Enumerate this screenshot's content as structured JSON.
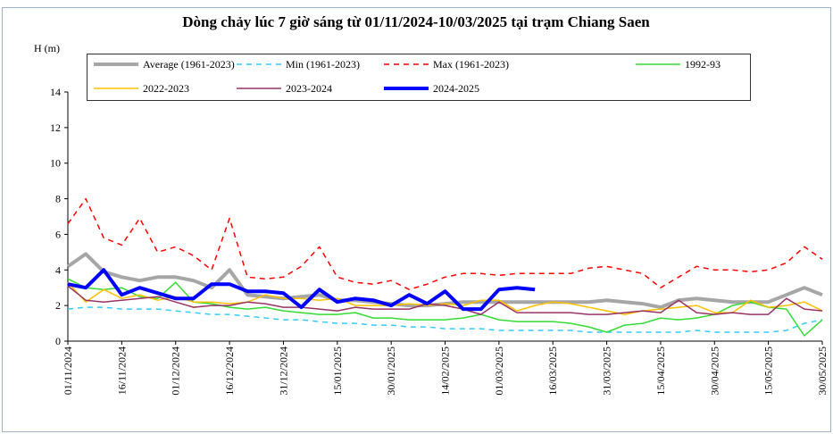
{
  "chart_data": {
    "type": "line",
    "title": "Dòng chảy lúc 7 giờ sáng từ 01/11/2024-10/03/2025 tại trạm Chiang Saen",
    "y_label": "H (m)",
    "x": [
      "01/11/2024",
      "06/11/2024",
      "11/11/2024",
      "16/11/2024",
      "21/11/2024",
      "26/11/2024",
      "01/12/2024",
      "06/12/2024",
      "11/12/2024",
      "16/12/2024",
      "21/12/2024",
      "26/12/2024",
      "31/12/2024",
      "05/01/2025",
      "10/01/2025",
      "15/01/2025",
      "20/01/2025",
      "25/01/2025",
      "30/01/2025",
      "04/02/2025",
      "09/02/2025",
      "14/02/2025",
      "19/02/2025",
      "24/02/2025",
      "01/03/2025",
      "06/03/2025",
      "11/03/2025",
      "16/03/2025",
      "21/03/2025",
      "26/03/2025",
      "31/03/2025",
      "05/04/2025",
      "10/04/2025",
      "15/04/2025",
      "20/04/2025",
      "25/04/2025",
      "30/04/2025",
      "05/05/2025",
      "10/05/2025",
      "15/05/2025",
      "20/05/2025",
      "25/05/2025",
      "30/05/2025"
    ],
    "xlim": [
      "01/11/2024",
      "30/05/2025"
    ],
    "xticks": [
      "01/11/2024",
      "16/11/2024",
      "01/12/2024",
      "16/12/2024",
      "31/12/2024",
      "15/01/2025",
      "30/01/2025",
      "14/02/2025",
      "01/03/2025",
      "16/03/2025",
      "31/03/2025",
      "15/04/2025",
      "30/04/2025",
      "15/05/2025",
      "30/05/2025"
    ],
    "ylim": [
      0,
      14
    ],
    "yticks": [
      0,
      2,
      4,
      6,
      8,
      10,
      12,
      14
    ],
    "series": [
      {
        "name": "Average (1961-2023)",
        "color": "#a6a6a6",
        "style": "bold",
        "values": [
          4.2,
          4.9,
          3.9,
          3.6,
          3.4,
          3.6,
          3.6,
          3.4,
          3.0,
          4.0,
          2.6,
          2.5,
          2.4,
          2.5,
          2.6,
          2.3,
          2.3,
          2.2,
          2.1,
          2.0,
          2.0,
          2.1,
          2.2,
          2.2,
          2.2,
          2.2,
          2.2,
          2.2,
          2.2,
          2.2,
          2.3,
          2.2,
          2.1,
          1.9,
          2.3,
          2.4,
          2.3,
          2.2,
          2.2,
          2.2,
          2.6,
          3.0,
          2.6
        ]
      },
      {
        "name": "Min (1961-2023)",
        "color": "#33ccff",
        "style": "dashed",
        "values": [
          1.8,
          1.9,
          1.9,
          1.8,
          1.8,
          1.8,
          1.7,
          1.6,
          1.5,
          1.5,
          1.4,
          1.3,
          1.2,
          1.2,
          1.1,
          1.0,
          1.0,
          0.9,
          0.9,
          0.8,
          0.8,
          0.7,
          0.7,
          0.7,
          0.6,
          0.6,
          0.6,
          0.6,
          0.6,
          0.5,
          0.5,
          0.5,
          0.5,
          0.5,
          0.5,
          0.6,
          0.5,
          0.5,
          0.5,
          0.5,
          0.6,
          1.0,
          1.2
        ]
      },
      {
        "name": "Max (1961-2023)",
        "color": "#ff0000",
        "style": "dashed",
        "values": [
          6.6,
          8.0,
          5.8,
          5.4,
          6.9,
          5.0,
          5.3,
          4.8,
          4.0,
          6.9,
          3.6,
          3.5,
          3.6,
          4.2,
          5.3,
          3.6,
          3.3,
          3.2,
          3.4,
          2.9,
          3.2,
          3.6,
          3.8,
          3.8,
          3.7,
          3.8,
          3.8,
          3.8,
          3.8,
          4.1,
          4.2,
          4.0,
          3.8,
          3.0,
          3.6,
          4.2,
          4.0,
          4.0,
          3.9,
          4.0,
          4.4,
          5.3,
          4.6
        ]
      },
      {
        "name": "1992-93",
        "color": "#33dd33",
        "style": "solid",
        "values": [
          3.5,
          3.0,
          2.9,
          3.0,
          2.5,
          2.4,
          3.3,
          2.2,
          2.1,
          1.9,
          1.8,
          1.9,
          1.7,
          1.6,
          1.5,
          1.5,
          1.6,
          1.3,
          1.3,
          1.2,
          1.2,
          1.2,
          1.3,
          1.5,
          1.2,
          1.1,
          1.1,
          1.1,
          1.0,
          0.8,
          0.5,
          0.9,
          1.0,
          1.3,
          1.2,
          1.3,
          1.5,
          2.0,
          2.2,
          1.9,
          1.8,
          0.3,
          1.2
        ]
      },
      {
        "name": "2022-2023",
        "color": "#ffc000",
        "style": "solid",
        "values": [
          3.3,
          2.2,
          2.9,
          2.4,
          2.6,
          2.3,
          2.5,
          2.2,
          2.2,
          2.1,
          2.2,
          2.6,
          2.4,
          2.4,
          2.3,
          2.4,
          2.0,
          2.0,
          2.0,
          2.1,
          2.0,
          2.1,
          2.0,
          2.3,
          2.3,
          1.7,
          2.0,
          2.2,
          2.1,
          1.9,
          1.7,
          1.5,
          1.7,
          1.8,
          1.9,
          2.0,
          1.6,
          1.6,
          2.3,
          1.9,
          2.0,
          2.2,
          1.7
        ]
      },
      {
        "name": "2023-2024",
        "color": "#993366",
        "style": "solid",
        "values": [
          3.1,
          2.3,
          2.2,
          2.3,
          2.4,
          2.5,
          2.2,
          1.9,
          2.0,
          2.0,
          2.2,
          2.1,
          1.9,
          1.9,
          1.8,
          1.7,
          1.9,
          1.8,
          1.8,
          1.8,
          2.1,
          2.0,
          1.8,
          1.5,
          2.2,
          1.6,
          1.6,
          1.6,
          1.6,
          1.5,
          1.5,
          1.6,
          1.7,
          1.6,
          2.3,
          1.6,
          1.5,
          1.6,
          1.5,
          1.5,
          2.4,
          1.8,
          1.7
        ]
      },
      {
        "name": "2024-2025",
        "color": "#0000ff",
        "style": "bold",
        "values": [
          3.2,
          3.0,
          4.0,
          2.6,
          3.0,
          2.7,
          2.4,
          2.4,
          3.2,
          3.2,
          2.8,
          2.8,
          2.7,
          1.9,
          2.9,
          2.2,
          2.4,
          2.3,
          2.0,
          2.6,
          2.1,
          2.8,
          1.8,
          1.8,
          2.9,
          3.0,
          2.9,
          null,
          null,
          null,
          null,
          null,
          null,
          null,
          null,
          null,
          null,
          null,
          null,
          null,
          null,
          null,
          null
        ]
      }
    ]
  }
}
